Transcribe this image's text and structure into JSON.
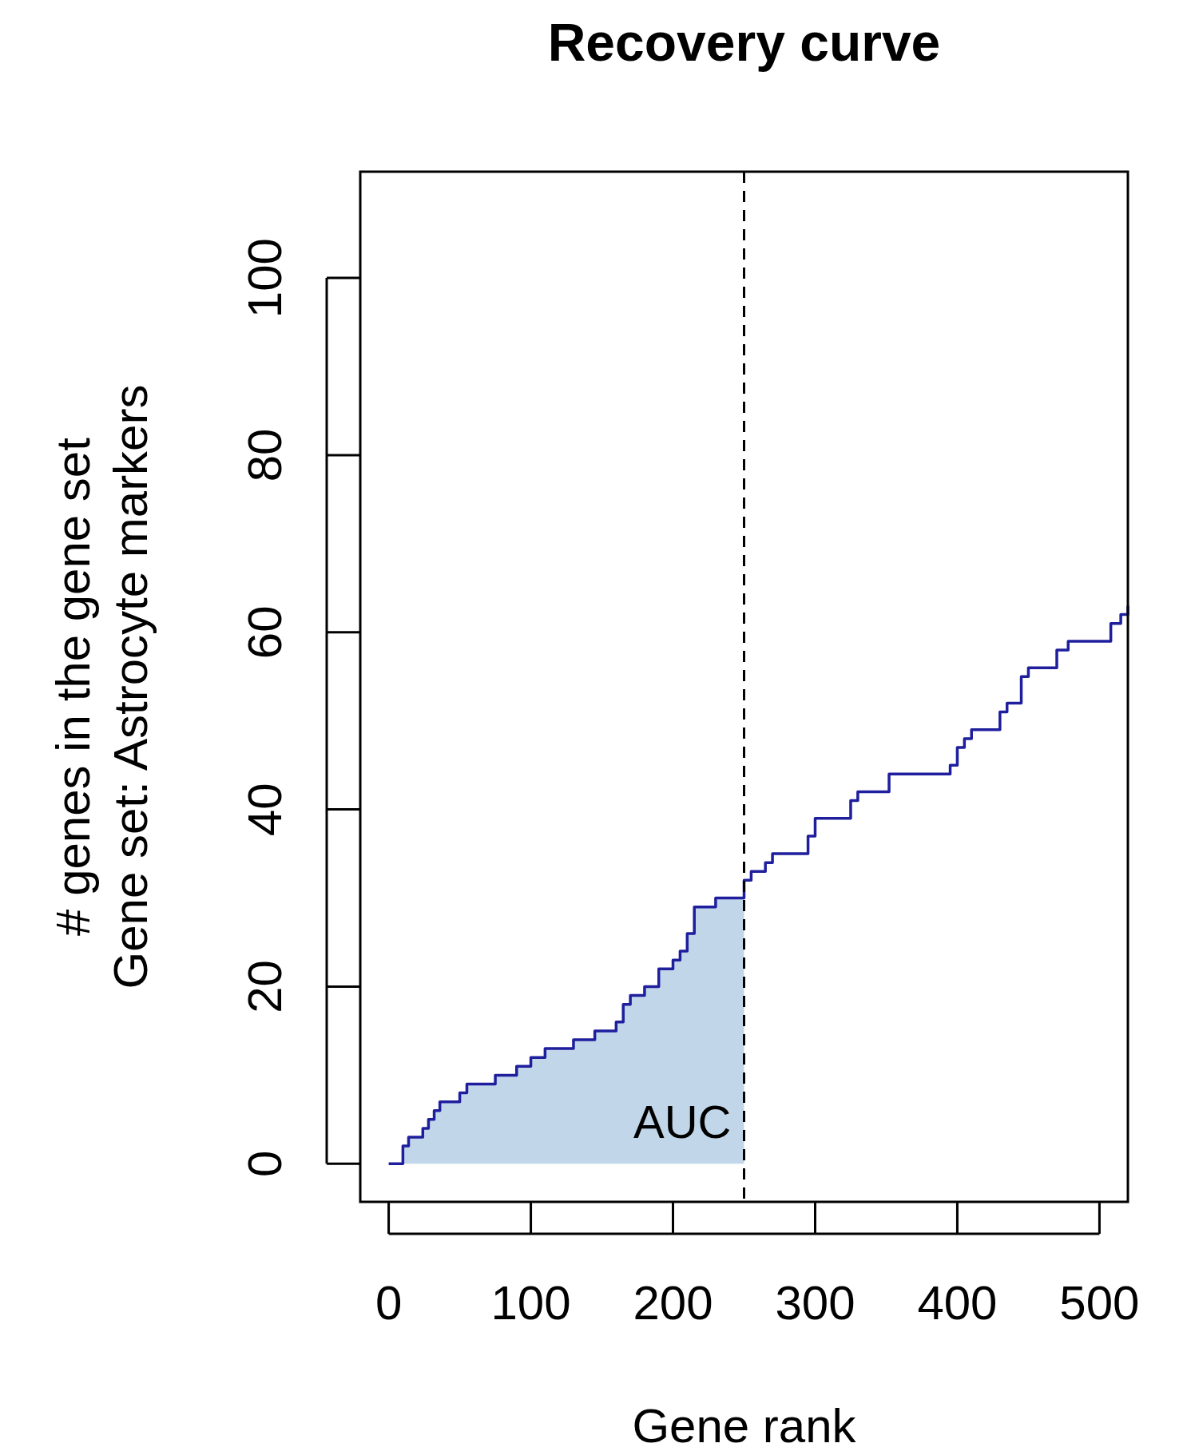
{
  "chart_data": {
    "type": "step",
    "title": "Recovery curve",
    "xlabel": "Gene rank",
    "ylabel": "# genes in the gene set\nGene set: Astrocyte markers",
    "xlim": [
      -20,
      520
    ],
    "ylim": [
      -4.3,
      112
    ],
    "xticks": [
      0,
      100,
      200,
      300,
      400,
      500
    ],
    "yticks": [
      0,
      20,
      40,
      60,
      80,
      100
    ],
    "grid": false,
    "series": [
      {
        "type": "area",
        "color": "#c1d7e9",
        "x": [
          0,
          6,
          10,
          14,
          20,
          24,
          28,
          32,
          36,
          45,
          50,
          55,
          70,
          75,
          85,
          90,
          100,
          110,
          120,
          130,
          140,
          145,
          160,
          165,
          170,
          180,
          190,
          200,
          205,
          210,
          215,
          225,
          230,
          245,
          250
        ],
        "values": [
          0,
          0,
          2,
          3,
          3,
          4,
          5,
          6,
          7,
          7,
          8,
          9,
          9,
          10,
          10,
          11,
          12,
          13,
          13,
          14,
          14,
          15,
          16,
          18,
          19,
          20,
          22,
          23,
          24,
          26,
          29,
          29,
          30,
          30,
          32
        ]
      },
      {
        "color": "#1f1f9e",
        "x": [
          0,
          6,
          10,
          14,
          20,
          24,
          28,
          32,
          36,
          45,
          50,
          55,
          70,
          75,
          85,
          90,
          100,
          110,
          120,
          130,
          140,
          145,
          160,
          165,
          170,
          180,
          190,
          200,
          205,
          210,
          215,
          225,
          230,
          245,
          250,
          255,
          265,
          270,
          290,
          295,
          300,
          320,
          325,
          330,
          350,
          352,
          390,
          395,
          400,
          405,
          410,
          425,
          430,
          435,
          440,
          445,
          450,
          465,
          470,
          475,
          478,
          505,
          508,
          515,
          520
        ],
        "values": [
          0,
          0,
          2,
          3,
          3,
          4,
          5,
          6,
          7,
          7,
          8,
          9,
          9,
          10,
          10,
          11,
          12,
          13,
          13,
          14,
          14,
          15,
          16,
          18,
          19,
          20,
          22,
          23,
          24,
          26,
          29,
          29,
          30,
          30,
          32,
          33,
          34,
          35,
          35,
          37,
          39,
          39,
          41,
          42,
          42,
          44,
          44,
          45,
          47,
          48,
          49,
          49,
          51,
          52,
          52,
          55,
          56,
          56,
          58,
          58,
          59,
          59,
          61,
          62,
          63
        ]
      }
    ],
    "ref_lines": [
      {
        "axis": "x",
        "value": 250,
        "color": "#000000",
        "line_style": "dashed"
      }
    ],
    "annotations": [
      "AUC"
    ]
  }
}
